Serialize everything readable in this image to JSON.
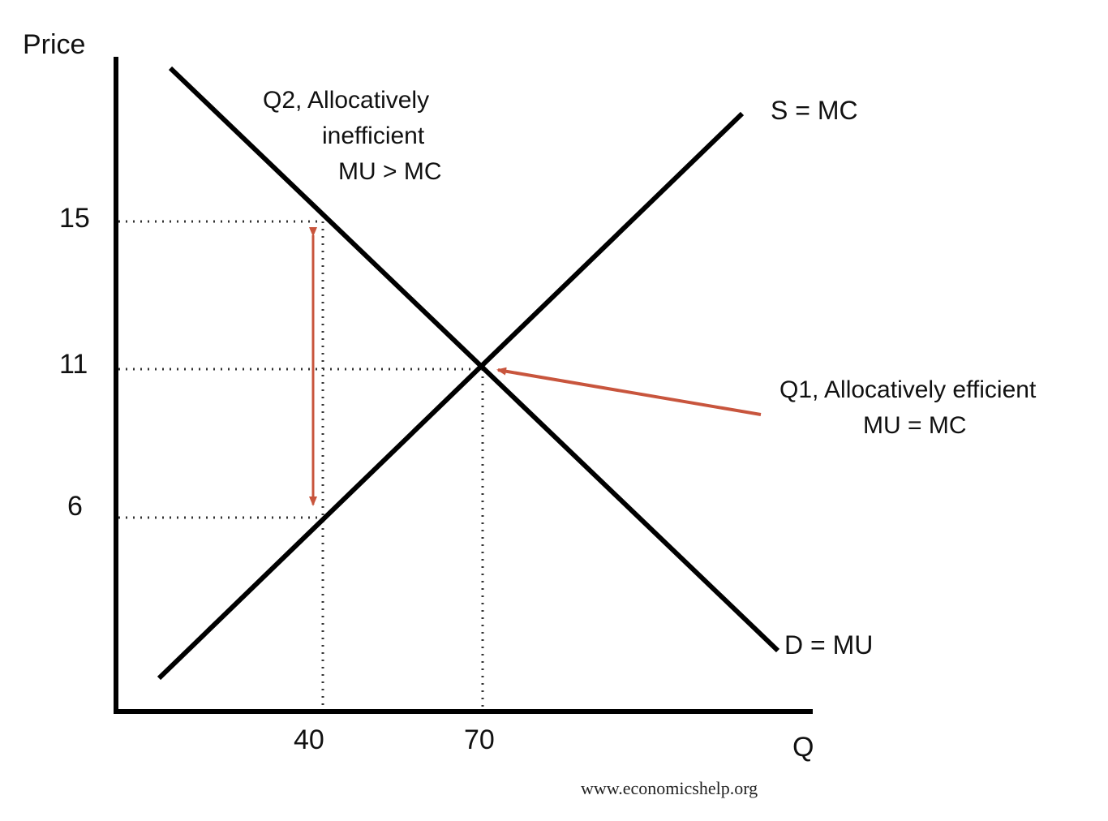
{
  "axes": {
    "y_label": "Price",
    "x_label": "Q",
    "y_ticks": [
      "15",
      "11",
      "6"
    ],
    "x_ticks": [
      "40",
      "70"
    ]
  },
  "curves": {
    "supply_label": "S = MC",
    "demand_label": "D = MU"
  },
  "annotations": {
    "q2": {
      "line1": "Q2, Allocatively",
      "line2": "inefficient",
      "line3": "MU > MC"
    },
    "q1": {
      "line1": "Q1, Allocatively efficient",
      "line2": "MU = MC"
    }
  },
  "points": {
    "equilibrium": {
      "q": 70,
      "p": 11
    },
    "q2_demand": {
      "q": 40,
      "p": 15
    },
    "q2_supply": {
      "q": 40,
      "p": 6
    }
  },
  "credit": "www.economicshelp.org",
  "colors": {
    "curve": "#000000",
    "guide": "#333333",
    "arrow": "#c8553d",
    "text": "#111111"
  }
}
